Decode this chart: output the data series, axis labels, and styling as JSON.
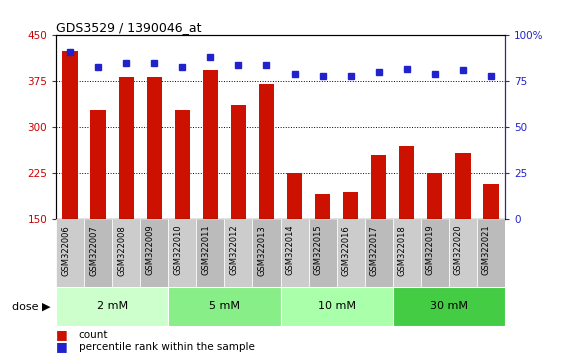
{
  "title": "GDS3529 / 1390046_at",
  "samples": [
    "GSM322006",
    "GSM322007",
    "GSM322008",
    "GSM322009",
    "GSM322010",
    "GSM322011",
    "GSM322012",
    "GSM322013",
    "GSM322014",
    "GSM322015",
    "GSM322016",
    "GSM322017",
    "GSM322018",
    "GSM322019",
    "GSM322020",
    "GSM322021"
  ],
  "counts": [
    425,
    328,
    382,
    382,
    328,
    393,
    337,
    370,
    225,
    192,
    195,
    255,
    270,
    225,
    258,
    208
  ],
  "percentiles": [
    91,
    83,
    85,
    85,
    83,
    88,
    84,
    84,
    79,
    78,
    78,
    80,
    82,
    79,
    81,
    78
  ],
  "ylim_left": [
    150,
    450
  ],
  "ylim_right": [
    0,
    100
  ],
  "yticks_left": [
    150,
    225,
    300,
    375,
    450
  ],
  "yticks_right": [
    0,
    25,
    50,
    75,
    100
  ],
  "bar_color": "#cc1100",
  "dot_color": "#2222cc",
  "grid_lines": [
    225,
    300,
    375
  ],
  "doses": [
    {
      "label": "2 mM",
      "start": 0,
      "end": 4,
      "color": "#ccffcc"
    },
    {
      "label": "5 mM",
      "start": 4,
      "end": 8,
      "color": "#88ee88"
    },
    {
      "label": "10 mM",
      "start": 8,
      "end": 12,
      "color": "#aaffaa"
    },
    {
      "label": "30 mM",
      "start": 12,
      "end": 16,
      "color": "#44cc44"
    }
  ],
  "left_tick_color": "#cc0000",
  "right_tick_color": "#2222cc",
  "legend_items": [
    {
      "label": "count",
      "color": "#cc1100"
    },
    {
      "label": "percentile rank within the sample",
      "color": "#2222cc"
    }
  ]
}
